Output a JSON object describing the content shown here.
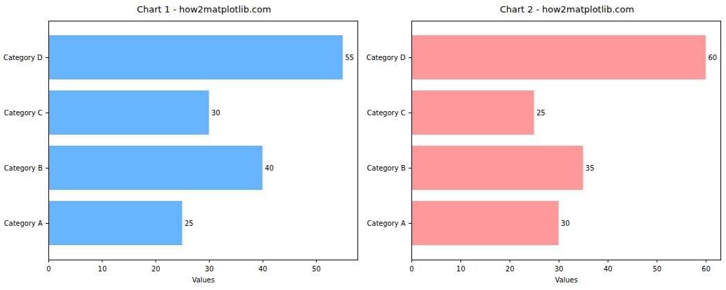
{
  "chart_data": [
    {
      "type": "bar",
      "title": "Chart 1 - how2matplotlib.com",
      "orientation": "horizontal",
      "categories": [
        "Category A",
        "Category B",
        "Category C",
        "Category D"
      ],
      "values": [
        25,
        40,
        30,
        55
      ],
      "color": "#66b3ff",
      "x_label": "Values",
      "xlim": [
        0,
        57.75
      ],
      "xticks": [
        0,
        10,
        20,
        30,
        40,
        50
      ],
      "data_labels": true,
      "grid": false
    },
    {
      "type": "bar",
      "title": "Chart 2 - how2matplotlib.com",
      "orientation": "horizontal",
      "categories": [
        "Category A",
        "Category B",
        "Category C",
        "Category D"
      ],
      "values": [
        30,
        35,
        25,
        60
      ],
      "color": "#ff9999",
      "x_label": "Values",
      "xlim": [
        0,
        63
      ],
      "xticks": [
        0,
        10,
        20,
        30,
        40,
        50,
        60
      ],
      "data_labels": true,
      "grid": false
    }
  ]
}
